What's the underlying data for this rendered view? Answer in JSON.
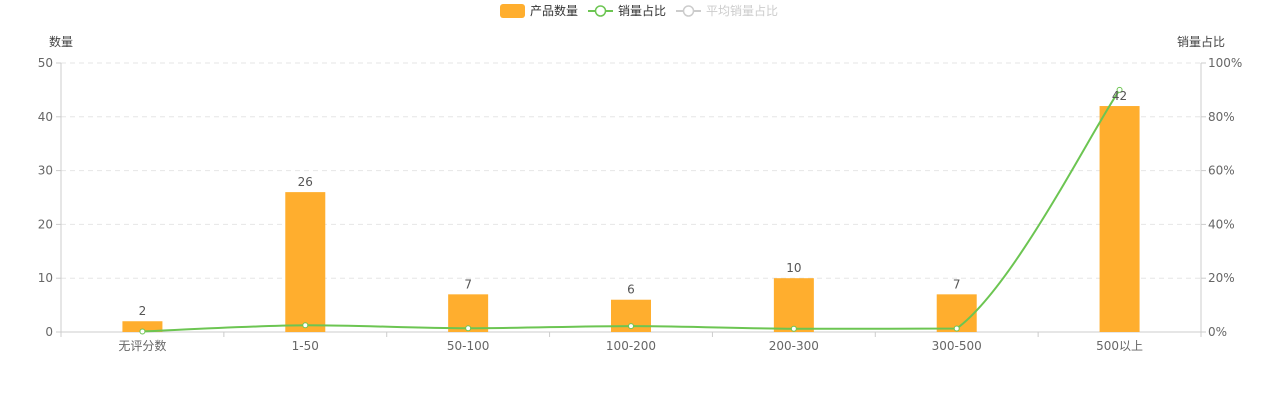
{
  "chart_data": {
    "type": "bar",
    "categories": [
      "无评分数",
      "1-50",
      "50-100",
      "100-200",
      "200-300",
      "300-500",
      "500以上"
    ],
    "y_left": {
      "name": "数量",
      "ticks": [
        "0",
        "10",
        "20",
        "30",
        "40",
        "50"
      ],
      "min": 0,
      "max": 50
    },
    "y_right": {
      "name": "销量占比",
      "ticks": [
        "0%",
        "20%",
        "40%",
        "60%",
        "80%",
        "100%"
      ],
      "min": 0,
      "max": 100
    },
    "series": [
      {
        "name": "产品数量",
        "kind": "bar",
        "axis": "left",
        "color": "#FFAE2E",
        "values": [
          2,
          26,
          7,
          6,
          10,
          7,
          42
        ],
        "labels": [
          "2",
          "26",
          "7",
          "6",
          "10",
          "7",
          "42"
        ]
      },
      {
        "name": "销量占比",
        "kind": "line",
        "axis": "right",
        "color": "#6CC552",
        "values": [
          0.2,
          2.5,
          1.4,
          2.2,
          1.2,
          1.3,
          90
        ]
      }
    ],
    "legend": {
      "position": "top-center",
      "items": [
        {
          "label": "产品数量",
          "kind": "bar",
          "color": "#FFAE2E",
          "active": true
        },
        {
          "label": "销量占比",
          "kind": "line",
          "color": "#6CC552",
          "active": true
        },
        {
          "label": "平均销量占比",
          "kind": "line",
          "color": "#cccccc",
          "active": false
        }
      ]
    },
    "grid": {
      "horizontal": true,
      "style": "dashed",
      "color": "#e6e6e6"
    }
  }
}
